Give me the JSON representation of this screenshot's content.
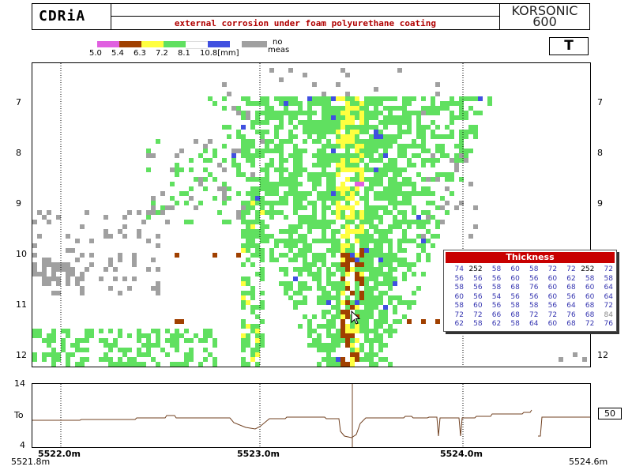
{
  "header": {
    "logo": "CDRiA",
    "title": "external corrosion under foam polyurethane coating",
    "device_line1": "KORSONIC",
    "device_line2": "600"
  },
  "legend": {
    "swatches": [
      {
        "color": "#e060e0"
      },
      {
        "color": "#a04000"
      },
      {
        "color": "#ffff40"
      },
      {
        "color": "#60e060"
      },
      {
        "color": "#ffffff"
      },
      {
        "color": "#4050e0"
      }
    ],
    "labels": [
      "5.0",
      "5.4",
      "6.3",
      "7.2",
      "8.1",
      "10.8[mm]"
    ],
    "no_meas_color": "#a0a0a0",
    "no_meas_label_1": "no",
    "no_meas_label_2": "meas"
  },
  "mode_button": "T",
  "map": {
    "y_ticks": [
      "7",
      "8",
      "9",
      "10",
      "11",
      "12"
    ]
  },
  "thickness_popup": {
    "title": "Thickness",
    "rows": [
      [
        "74",
        "252",
        "58",
        "60",
        "58",
        "72",
        "72",
        "252",
        "72"
      ],
      [
        "56",
        "56",
        "56",
        "60",
        "56",
        "60",
        "62",
        "58",
        "58"
      ],
      [
        "58",
        "56",
        "58",
        "68",
        "76",
        "60",
        "68",
        "60",
        "64"
      ],
      [
        "60",
        "56",
        "54",
        "56",
        "56",
        "60",
        "56",
        "60",
        "64"
      ],
      [
        "58",
        "60",
        "56",
        "58",
        "58",
        "56",
        "64",
        "68",
        "72"
      ],
      [
        "72",
        "72",
        "66",
        "68",
        "72",
        "72",
        "76",
        "68",
        "84"
      ],
      [
        "62",
        "58",
        "62",
        "58",
        "64",
        "60",
        "68",
        "72",
        "76"
      ]
    ]
  },
  "profile": {
    "y_labels": [
      "14",
      "To",
      "4"
    ],
    "value_box": "50"
  },
  "x_axis": {
    "labels": [
      "5522.0m",
      "5523.0m",
      "5524.0m"
    ],
    "start": "5521.8m",
    "end": "5524.6m"
  }
}
